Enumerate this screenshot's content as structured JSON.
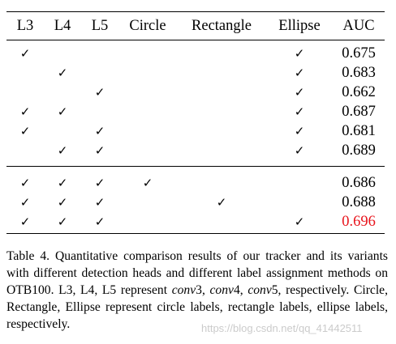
{
  "table": {
    "headers": [
      "L3",
      "L4",
      "L5",
      "Circle",
      "Rectangle",
      "Ellipse",
      "AUC"
    ],
    "check_symbol": "✓",
    "rows": [
      {
        "L3": true,
        "L4": false,
        "L5": false,
        "Circle": false,
        "Rectangle": false,
        "Ellipse": true,
        "AUC": "0.675"
      },
      {
        "L3": false,
        "L4": true,
        "L5": false,
        "Circle": false,
        "Rectangle": false,
        "Ellipse": true,
        "AUC": "0.683"
      },
      {
        "L3": false,
        "L4": false,
        "L5": true,
        "Circle": false,
        "Rectangle": false,
        "Ellipse": true,
        "AUC": "0.662"
      },
      {
        "L3": true,
        "L4": true,
        "L5": false,
        "Circle": false,
        "Rectangle": false,
        "Ellipse": true,
        "AUC": "0.687"
      },
      {
        "L3": true,
        "L4": false,
        "L5": true,
        "Circle": false,
        "Rectangle": false,
        "Ellipse": true,
        "AUC": "0.681"
      },
      {
        "L3": false,
        "L4": true,
        "L5": true,
        "Circle": false,
        "Rectangle": false,
        "Ellipse": true,
        "AUC": "0.689"
      },
      {
        "L3": true,
        "L4": true,
        "L5": true,
        "Circle": true,
        "Rectangle": false,
        "Ellipse": false,
        "AUC": "0.686"
      },
      {
        "L3": true,
        "L4": true,
        "L5": true,
        "Circle": false,
        "Rectangle": true,
        "Ellipse": false,
        "AUC": "0.688"
      },
      {
        "L3": true,
        "L4": true,
        "L5": true,
        "Circle": false,
        "Rectangle": false,
        "Ellipse": true,
        "AUC": "0.696",
        "highlight": true
      }
    ],
    "highlight_color": "#e8141c"
  },
  "caption": {
    "p1": "Table 4. Quantitative comparison results of our tracker and its variants with different detection heads and different label assignment methods on OTB100. L3, L4, L5 represent ",
    "conv3": "conv",
    "conv3_num": "3, ",
    "conv4": "conv",
    "conv4_num": "4, ",
    "conv5": "conv",
    "p2": "5, respectively. Circle, Rectangle, Ellipse represent circle labels, rectangle labels, ellipse labels, respectively."
  },
  "watermark": "https://blog.csdn.net/qq_41442511"
}
